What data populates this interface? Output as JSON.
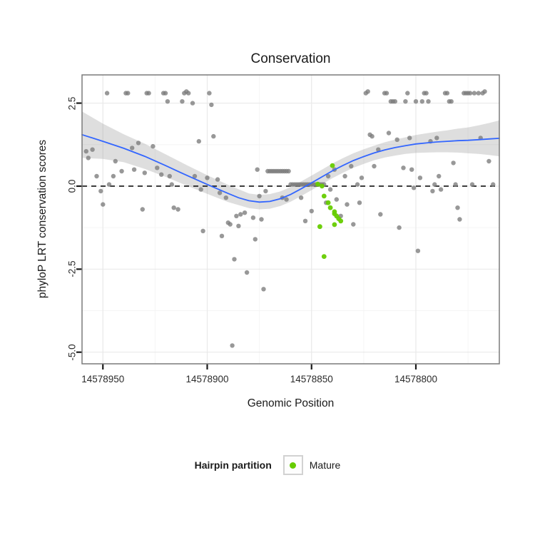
{
  "chart_data": {
    "type": "scatter",
    "title": "Conservation",
    "xlabel": "Genomic Position",
    "ylabel": "phyloP LRT conservation scores",
    "x_axis_reversed": true,
    "xlim": [
      14578960,
      14578760
    ],
    "ylim": [
      -5.35,
      3.35
    ],
    "x_ticks": [
      14578950,
      14578900,
      14578850,
      14578800
    ],
    "x_tick_labels": [
      "14578950",
      "14578900",
      "14578850",
      "14578800"
    ],
    "x_minor_ticks": [
      14578925,
      14578875,
      14578825,
      14578775
    ],
    "y_ticks": [
      2.5,
      0,
      -2.5,
      -5
    ],
    "y_tick_labels": [
      "2.5",
      "0.0",
      "-2.5",
      "-5.0"
    ],
    "y_minor_ticks": [
      1.25,
      -1.25,
      -3.75
    ],
    "hline_y": 0,
    "grid": true,
    "legend_position": "bottom",
    "theme": {
      "panel_bg": "#ffffff",
      "grid_major": "#e9e9e9",
      "grid_minor": "#f5f5f5",
      "panel_border": "#7a7a7a",
      "tick_color": "#1a1a1a",
      "hline_color": "#111111"
    },
    "series": [
      {
        "name": "Hairpin",
        "color": "#7b7b7b",
        "opacity": 0.78,
        "radius": 3.2,
        "points": [
          [
            14578958,
            1.05
          ],
          [
            14578957,
            0.85
          ],
          [
            14578955,
            1.1
          ],
          [
            14578953,
            0.3
          ],
          [
            14578951,
            -0.15
          ],
          [
            14578950,
            -0.55
          ],
          [
            14578948,
            2.8
          ],
          [
            14578947,
            0.05
          ],
          [
            14578945,
            0.3
          ],
          [
            14578944,
            0.75
          ],
          [
            14578941,
            0.45
          ],
          [
            14578939,
            2.8
          ],
          [
            14578938,
            2.8
          ],
          [
            14578936,
            1.15
          ],
          [
            14578935,
            0.5
          ],
          [
            14578933,
            1.3
          ],
          [
            14578931,
            -0.7
          ],
          [
            14578930,
            0.4
          ],
          [
            14578929,
            2.8
          ],
          [
            14578928,
            2.8
          ],
          [
            14578926,
            1.2
          ],
          [
            14578924,
            0.55
          ],
          [
            14578922,
            0.35
          ],
          [
            14578921,
            2.8
          ],
          [
            14578920,
            2.8
          ],
          [
            14578919,
            2.55
          ],
          [
            14578918,
            0.3
          ],
          [
            14578917,
            0.05
          ],
          [
            14578916,
            -0.65
          ],
          [
            14578914,
            -0.7
          ],
          [
            14578912,
            2.55
          ],
          [
            14578911,
            2.8
          ],
          [
            14578910,
            2.85
          ],
          [
            14578909,
            2.8
          ],
          [
            14578907,
            2.5
          ],
          [
            14578906,
            0.3
          ],
          [
            14578904,
            1.35
          ],
          [
            14578903,
            -0.1
          ],
          [
            14578902,
            -1.35
          ],
          [
            14578900,
            0.25
          ],
          [
            14578899,
            2.8
          ],
          [
            14578898,
            2.45
          ],
          [
            14578897,
            1.5
          ],
          [
            14578895,
            0.2
          ],
          [
            14578894,
            -0.2
          ],
          [
            14578893,
            -1.5
          ],
          [
            14578891,
            -0.35
          ],
          [
            14578890,
            -1.1
          ],
          [
            14578889,
            -1.15
          ],
          [
            14578888,
            -4.8
          ],
          [
            14578887,
            -2.2
          ],
          [
            14578886,
            -0.9
          ],
          [
            14578885,
            -1.2
          ],
          [
            14578884,
            -0.85
          ],
          [
            14578882,
            -0.8
          ],
          [
            14578881,
            -2.6
          ],
          [
            14578878,
            -0.95
          ],
          [
            14578877,
            -1.6
          ],
          [
            14578876,
            0.5
          ],
          [
            14578875,
            -0.3
          ],
          [
            14578874,
            -1.0
          ],
          [
            14578873,
            -3.1
          ],
          [
            14578872,
            -0.15
          ],
          [
            14578871,
            0.45
          ],
          [
            14578870,
            0.45
          ],
          [
            14578869,
            0.45
          ],
          [
            14578868,
            0.45
          ],
          [
            14578867,
            0.45
          ],
          [
            14578866,
            0.45
          ],
          [
            14578865,
            0.45
          ],
          [
            14578864,
            0.45
          ],
          [
            14578863,
            0.45
          ],
          [
            14578862,
            0.45
          ],
          [
            14578861,
            0.45
          ],
          [
            14578864,
            -0.35
          ],
          [
            14578862,
            -0.4
          ],
          [
            14578860,
            0.05
          ],
          [
            14578859,
            0.05
          ],
          [
            14578858,
            0.05
          ],
          [
            14578857,
            0.05
          ],
          [
            14578856,
            0.05
          ],
          [
            14578855,
            0.05
          ],
          [
            14578854,
            0.05
          ],
          [
            14578853,
            0.05
          ],
          [
            14578852,
            0.05
          ],
          [
            14578851,
            0.05
          ],
          [
            14578850,
            0.05
          ],
          [
            14578849,
            0.05
          ],
          [
            14578848,
            0.05
          ],
          [
            14578847,
            0.05
          ],
          [
            14578846,
            0.05
          ],
          [
            14578845,
            0.05
          ],
          [
            14578844,
            0.05
          ],
          [
            14578855,
            -0.35
          ],
          [
            14578853,
            -1.05
          ],
          [
            14578850,
            -0.75
          ],
          [
            14578843,
            -0.5
          ],
          [
            14578842,
            0.3
          ],
          [
            14578841,
            -0.1
          ],
          [
            14578839,
            0.5
          ],
          [
            14578838,
            -0.4
          ],
          [
            14578836,
            -0.9
          ],
          [
            14578834,
            0.3
          ],
          [
            14578833,
            -0.55
          ],
          [
            14578831,
            0.6
          ],
          [
            14578830,
            -1.15
          ],
          [
            14578828,
            0.05
          ],
          [
            14578827,
            -0.5
          ],
          [
            14578826,
            0.25
          ],
          [
            14578824,
            2.8
          ],
          [
            14578823,
            2.85
          ],
          [
            14578822,
            1.55
          ],
          [
            14578821,
            1.5
          ],
          [
            14578820,
            0.6
          ],
          [
            14578818,
            1.1
          ],
          [
            14578817,
            -0.85
          ],
          [
            14578815,
            2.8
          ],
          [
            14578814,
            2.8
          ],
          [
            14578813,
            1.6
          ],
          [
            14578812,
            2.55
          ],
          [
            14578811,
            2.55
          ],
          [
            14578810,
            2.55
          ],
          [
            14578809,
            1.4
          ],
          [
            14578808,
            -1.25
          ],
          [
            14578806,
            0.55
          ],
          [
            14578805,
            2.55
          ],
          [
            14578804,
            2.8
          ],
          [
            14578803,
            1.45
          ],
          [
            14578802,
            0.5
          ],
          [
            14578801,
            -0.05
          ],
          [
            14578800,
            2.55
          ],
          [
            14578799,
            -1.95
          ],
          [
            14578798,
            0.25
          ],
          [
            14578797,
            2.55
          ],
          [
            14578796,
            2.8
          ],
          [
            14578795,
            2.8
          ],
          [
            14578794,
            2.55
          ],
          [
            14578793,
            1.35
          ],
          [
            14578792,
            -0.15
          ],
          [
            14578791,
            0.05
          ],
          [
            14578790,
            1.45
          ],
          [
            14578789,
            0.3
          ],
          [
            14578788,
            -0.1
          ],
          [
            14578786,
            2.8
          ],
          [
            14578785,
            2.8
          ],
          [
            14578784,
            2.55
          ],
          [
            14578783,
            2.55
          ],
          [
            14578782,
            0.7
          ],
          [
            14578781,
            0.05
          ],
          [
            14578780,
            -0.65
          ],
          [
            14578779,
            -1.0
          ],
          [
            14578777,
            2.8
          ],
          [
            14578776,
            2.8
          ],
          [
            14578775,
            2.8
          ],
          [
            14578774,
            2.8
          ],
          [
            14578773,
            0.05
          ],
          [
            14578772,
            2.8
          ],
          [
            14578770,
            2.8
          ],
          [
            14578769,
            1.45
          ],
          [
            14578768,
            2.8
          ],
          [
            14578767,
            2.85
          ],
          [
            14578765,
            0.75
          ],
          [
            14578763,
            0.05
          ]
        ]
      },
      {
        "name": "Mature",
        "color": "#66CC00",
        "opacity": 0.95,
        "radius": 3.4,
        "points": [
          [
            14578840,
            0.62
          ],
          [
            14578847,
            0.06
          ],
          [
            14578845,
            0
          ],
          [
            14578844,
            -0.3
          ],
          [
            14578842,
            -0.5
          ],
          [
            14578841,
            -0.65
          ],
          [
            14578839,
            -0.77
          ],
          [
            14578839,
            -0.83
          ],
          [
            14578838,
            -0.9
          ],
          [
            14578837,
            -0.98
          ],
          [
            14578836,
            -1.05
          ],
          [
            14578839,
            -1.16
          ],
          [
            14578846,
            -1.22
          ],
          [
            14578844,
            -2.12
          ]
        ]
      }
    ],
    "smooth": {
      "color": "#3366FF",
      "band_color": "#999999",
      "band_opacity": 0.32,
      "line": [
        [
          14578960,
          1.55
        ],
        [
          14578950,
          1.35
        ],
        [
          14578940,
          1.14
        ],
        [
          14578930,
          0.9
        ],
        [
          14578920,
          0.62
        ],
        [
          14578910,
          0.33
        ],
        [
          14578900,
          0.05
        ],
        [
          14578890,
          -0.22
        ],
        [
          14578885,
          -0.35
        ],
        [
          14578880,
          -0.44
        ],
        [
          14578875,
          -0.48
        ],
        [
          14578870,
          -0.46
        ],
        [
          14578865,
          -0.38
        ],
        [
          14578860,
          -0.25
        ],
        [
          14578855,
          -0.08
        ],
        [
          14578850,
          0.1
        ],
        [
          14578845,
          0.28
        ],
        [
          14578840,
          0.46
        ],
        [
          14578835,
          0.62
        ],
        [
          14578830,
          0.77
        ],
        [
          14578825,
          0.89
        ],
        [
          14578820,
          1
        ],
        [
          14578815,
          1.09
        ],
        [
          14578810,
          1.16
        ],
        [
          14578805,
          1.22
        ],
        [
          14578800,
          1.27
        ],
        [
          14578795,
          1.3
        ],
        [
          14578790,
          1.33
        ],
        [
          14578785,
          1.35
        ],
        [
          14578780,
          1.37
        ],
        [
          14578775,
          1.38
        ],
        [
          14578770,
          1.4
        ],
        [
          14578765,
          1.42
        ],
        [
          14578760,
          1.44
        ]
      ],
      "band": [
        [
          14578960,
          0.85,
          2.25
        ],
        [
          14578950,
          0.82,
          1.88
        ],
        [
          14578940,
          0.72,
          1.56
        ],
        [
          14578930,
          0.52,
          1.28
        ],
        [
          14578920,
          0.28,
          0.96
        ],
        [
          14578910,
          0.02,
          0.64
        ],
        [
          14578900,
          -0.23,
          0.33
        ],
        [
          14578890,
          -0.48,
          0.04
        ],
        [
          14578880,
          -0.66,
          -0.22
        ],
        [
          14578875,
          -0.7,
          -0.26
        ],
        [
          14578870,
          -0.68,
          -0.24
        ],
        [
          14578865,
          -0.6,
          -0.16
        ],
        [
          14578860,
          -0.47,
          -0.03
        ],
        [
          14578855,
          -0.3,
          0.14
        ],
        [
          14578850,
          -0.12,
          0.32
        ],
        [
          14578845,
          0.06,
          0.5
        ],
        [
          14578840,
          0.24,
          0.68
        ],
        [
          14578835,
          0.4,
          0.84
        ],
        [
          14578830,
          0.55,
          0.99
        ],
        [
          14578825,
          0.67,
          1.11
        ],
        [
          14578820,
          0.78,
          1.22
        ],
        [
          14578815,
          0.86,
          1.32
        ],
        [
          14578810,
          0.92,
          1.4
        ],
        [
          14578805,
          0.97,
          1.47
        ],
        [
          14578800,
          1,
          1.54
        ],
        [
          14578795,
          1.01,
          1.59
        ],
        [
          14578790,
          1.02,
          1.64
        ],
        [
          14578785,
          1.02,
          1.68
        ],
        [
          14578780,
          1.01,
          1.73
        ],
        [
          14578775,
          0.99,
          1.77
        ],
        [
          14578770,
          0.97,
          1.83
        ],
        [
          14578765,
          0.94,
          1.9
        ],
        [
          14578760,
          0.9,
          1.98
        ]
      ]
    }
  },
  "legend": {
    "title": "Hairpin partition",
    "items": [
      {
        "label": "Mature",
        "color": "#66CC00"
      }
    ]
  }
}
